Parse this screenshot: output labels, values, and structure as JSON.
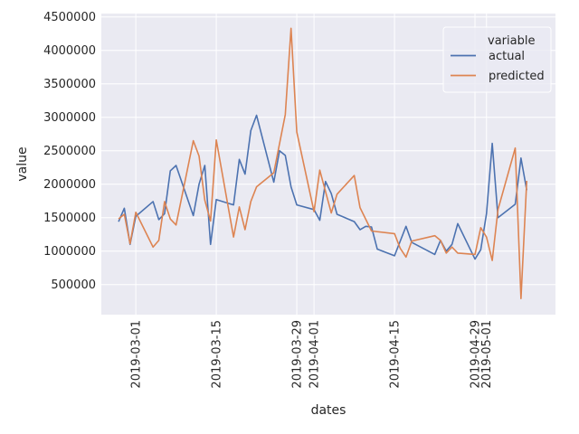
{
  "chart_data": {
    "type": "line",
    "xlabel": "dates",
    "ylabel": "value",
    "x_ticks": [
      "2019-03-01",
      "2019-03-15",
      "2019-03-29",
      "2019-04-01",
      "2019-04-15",
      "2019-04-29",
      "2019-05-01"
    ],
    "y_ticks": [
      500000,
      1000000,
      1500000,
      2000000,
      2500000,
      3000000,
      3500000,
      4000000,
      4500000
    ],
    "y_tick_labels": [
      "500000",
      "1000000",
      "1500000",
      "2000000",
      "2500000",
      "3000000",
      "3500000",
      "4000000",
      "4500000"
    ],
    "xlim": [
      "2019-02-23",
      "2019-05-13"
    ],
    "ylim": [
      50000,
      4550000
    ],
    "grid": true,
    "legend": {
      "title": "variable",
      "placement": "top-right"
    },
    "series": [
      {
        "name": "actual",
        "color": "#4c72b0",
        "points": [
          [
            "2019-02-26",
            1440000
          ],
          [
            "2019-02-27",
            1640000
          ],
          [
            "2019-02-28",
            1100000
          ],
          [
            "2019-03-01",
            1520000
          ],
          [
            "2019-03-04",
            1740000
          ],
          [
            "2019-03-05",
            1470000
          ],
          [
            "2019-03-06",
            1560000
          ],
          [
            "2019-03-07",
            2200000
          ],
          [
            "2019-03-08",
            2280000
          ],
          [
            "2019-03-11",
            1530000
          ],
          [
            "2019-03-12",
            2000000
          ],
          [
            "2019-03-13",
            2280000
          ],
          [
            "2019-03-14",
            1100000
          ],
          [
            "2019-03-15",
            1770000
          ],
          [
            "2019-03-18",
            1690000
          ],
          [
            "2019-03-19",
            2370000
          ],
          [
            "2019-03-20",
            2150000
          ],
          [
            "2019-03-21",
            2800000
          ],
          [
            "2019-03-22",
            3030000
          ],
          [
            "2019-03-25",
            2030000
          ],
          [
            "2019-03-26",
            2500000
          ],
          [
            "2019-03-27",
            2430000
          ],
          [
            "2019-03-28",
            1960000
          ],
          [
            "2019-03-29",
            1690000
          ],
          [
            "2019-04-01",
            1620000
          ],
          [
            "2019-04-02",
            1460000
          ],
          [
            "2019-04-03",
            2040000
          ],
          [
            "2019-04-04",
            1860000
          ],
          [
            "2019-04-05",
            1550000
          ],
          [
            "2019-04-08",
            1440000
          ],
          [
            "2019-04-09",
            1320000
          ],
          [
            "2019-04-10",
            1370000
          ],
          [
            "2019-04-11",
            1360000
          ],
          [
            "2019-04-12",
            1030000
          ],
          [
            "2019-04-15",
            930000
          ],
          [
            "2019-04-17",
            1370000
          ],
          [
            "2019-04-18",
            1130000
          ],
          [
            "2019-04-22",
            950000
          ],
          [
            "2019-04-23",
            1160000
          ],
          [
            "2019-04-24",
            1000000
          ],
          [
            "2019-04-25",
            1100000
          ],
          [
            "2019-04-26",
            1410000
          ],
          [
            "2019-04-29",
            880000
          ],
          [
            "2019-04-30",
            1020000
          ],
          [
            "2019-05-01",
            1560000
          ],
          [
            "2019-05-02",
            2610000
          ],
          [
            "2019-05-03",
            1500000
          ],
          [
            "2019-05-06",
            1700000
          ],
          [
            "2019-05-07",
            2390000
          ],
          [
            "2019-05-08",
            1910000
          ]
        ]
      },
      {
        "name": "predicted",
        "color": "#dd8452",
        "points": [
          [
            "2019-02-26",
            1480000
          ],
          [
            "2019-02-27",
            1550000
          ],
          [
            "2019-02-28",
            1110000
          ],
          [
            "2019-03-01",
            1580000
          ],
          [
            "2019-03-04",
            1060000
          ],
          [
            "2019-03-05",
            1160000
          ],
          [
            "2019-03-06",
            1740000
          ],
          [
            "2019-03-07",
            1480000
          ],
          [
            "2019-03-08",
            1390000
          ],
          [
            "2019-03-11",
            2650000
          ],
          [
            "2019-03-12",
            2420000
          ],
          [
            "2019-03-13",
            1760000
          ],
          [
            "2019-03-14",
            1450000
          ],
          [
            "2019-03-15",
            2660000
          ],
          [
            "2019-03-18",
            1210000
          ],
          [
            "2019-03-19",
            1660000
          ],
          [
            "2019-03-20",
            1320000
          ],
          [
            "2019-03-21",
            1740000
          ],
          [
            "2019-03-22",
            1960000
          ],
          [
            "2019-03-25",
            2170000
          ],
          [
            "2019-03-27",
            3040000
          ],
          [
            "2019-03-28",
            4330000
          ],
          [
            "2019-03-29",
            2780000
          ],
          [
            "2019-04-01",
            1590000
          ],
          [
            "2019-04-02",
            2210000
          ],
          [
            "2019-04-04",
            1570000
          ],
          [
            "2019-04-05",
            1850000
          ],
          [
            "2019-04-08",
            2130000
          ],
          [
            "2019-04-09",
            1650000
          ],
          [
            "2019-04-11",
            1300000
          ],
          [
            "2019-04-15",
            1260000
          ],
          [
            "2019-04-16",
            1040000
          ],
          [
            "2019-04-17",
            910000
          ],
          [
            "2019-04-18",
            1150000
          ],
          [
            "2019-04-22",
            1230000
          ],
          [
            "2019-04-23",
            1160000
          ],
          [
            "2019-04-24",
            970000
          ],
          [
            "2019-04-25",
            1060000
          ],
          [
            "2019-04-26",
            970000
          ],
          [
            "2019-04-29",
            950000
          ],
          [
            "2019-04-30",
            1350000
          ],
          [
            "2019-05-01",
            1210000
          ],
          [
            "2019-05-02",
            860000
          ],
          [
            "2019-05-03",
            1620000
          ],
          [
            "2019-05-06",
            2540000
          ],
          [
            "2019-05-07",
            290000
          ],
          [
            "2019-05-08",
            2050000
          ]
        ]
      }
    ]
  }
}
